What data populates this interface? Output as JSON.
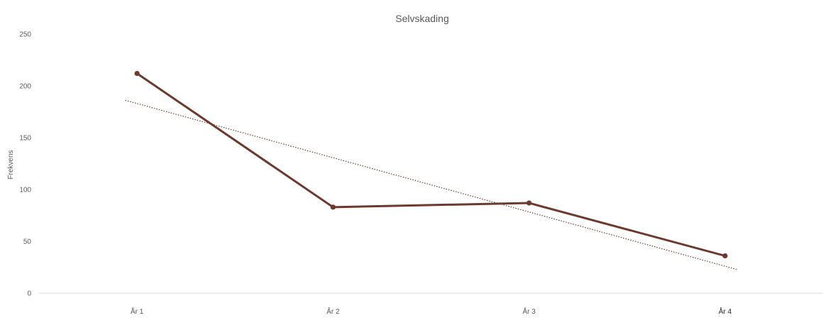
{
  "chart_data": {
    "type": "line",
    "title": "Selvskading",
    "xlabel": "",
    "ylabel": "Frekvens",
    "categories": [
      "År 1",
      "År 2",
      "År  3",
      "År 4"
    ],
    "series": [
      {
        "name": "",
        "values": [
          212,
          83,
          87,
          36
        ],
        "color": "#6B3A2E"
      }
    ],
    "trendline": {
      "style": "linear",
      "values": [
        183,
        131,
        78,
        26
      ],
      "color": "#6B3A2E"
    },
    "ylim": [
      0,
      250
    ],
    "yticks": [
      "0",
      "50",
      "100",
      "150",
      "200",
      "250"
    ],
    "grid": false,
    "legend": "none"
  }
}
